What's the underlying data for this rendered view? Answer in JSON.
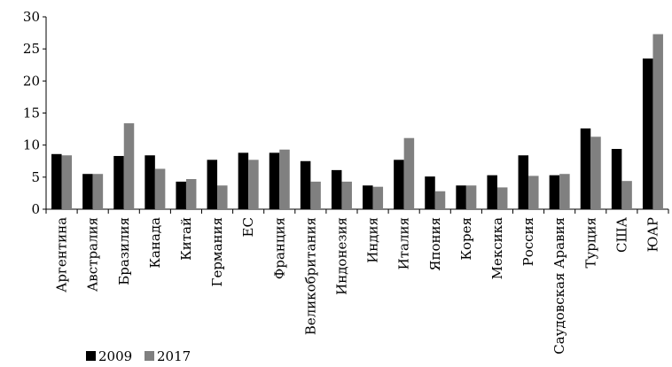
{
  "chart_data": {
    "type": "bar",
    "title": "",
    "xlabel": "",
    "ylabel": "",
    "ylim": [
      0,
      30
    ],
    "yticks": [
      0,
      5,
      10,
      15,
      20,
      25,
      30
    ],
    "grid": false,
    "legend_position": "bottom-left",
    "categories": [
      "Аргентина",
      "Австралия",
      "Бразилия",
      "Канада",
      "Китай",
      "Германия",
      "ЕС",
      "Франция",
      "Великобритания",
      "Индонезия",
      "Индия",
      "Италия",
      "Япония",
      "Корея",
      "Мексика",
      "Россия",
      "Саудовская Аравия",
      "Турция",
      "США",
      "ЮАР"
    ],
    "series": [
      {
        "name": "2009",
        "color": "#000000",
        "values": [
          8.6,
          5.5,
          8.3,
          8.4,
          4.3,
          7.7,
          8.8,
          8.8,
          7.5,
          6.1,
          3.7,
          7.7,
          5.1,
          3.7,
          5.3,
          8.4,
          5.3,
          12.6,
          9.4,
          23.5
        ]
      },
      {
        "name": "2017",
        "color": "#808080",
        "values": [
          8.4,
          5.5,
          13.4,
          6.3,
          4.7,
          3.7,
          7.7,
          9.3,
          4.3,
          4.3,
          3.5,
          11.1,
          2.8,
          3.7,
          3.4,
          5.2,
          5.5,
          11.3,
          4.4,
          27.3
        ]
      }
    ]
  }
}
